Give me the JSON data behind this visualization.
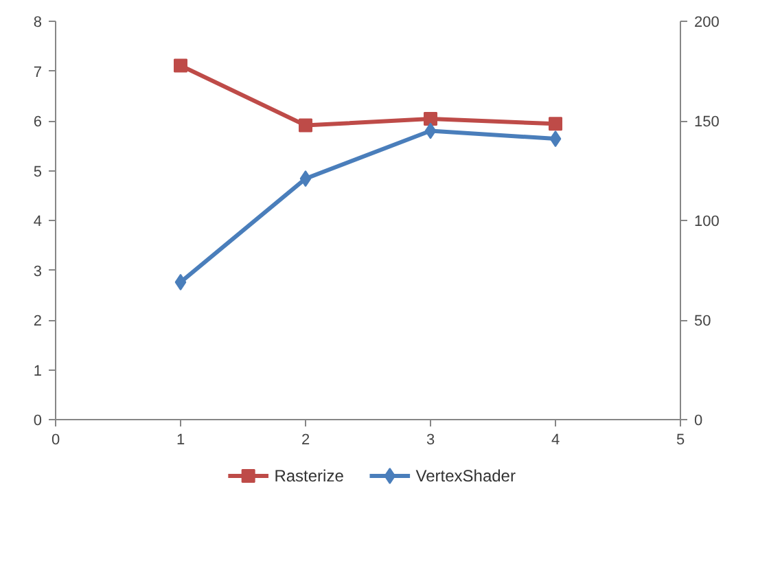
{
  "chart_data": {
    "type": "line",
    "x": [
      1,
      2,
      3,
      4
    ],
    "series": [
      {
        "name": "Rasterize",
        "color": "#be4b48",
        "values": [
          7.11,
          5.91,
          6.04,
          5.94
        ],
        "marker": "square"
      },
      {
        "name": "VertexShader",
        "color": "#4a7ebb",
        "values": [
          69,
          121,
          145,
          141
        ],
        "marker": "diamond",
        "axis": "y2"
      }
    ],
    "xlim": [
      0,
      5
    ],
    "xticks": [
      0,
      1,
      2,
      3,
      4,
      5
    ],
    "ylim": [
      0,
      8
    ],
    "yticks": [
      0,
      1,
      2,
      3,
      4,
      5,
      6,
      7,
      8
    ],
    "y2lim": [
      0,
      200
    ],
    "y2ticks": [
      0,
      50,
      100,
      150,
      200
    ],
    "grid": false,
    "legend": "bottom",
    "line_style": "solid"
  }
}
